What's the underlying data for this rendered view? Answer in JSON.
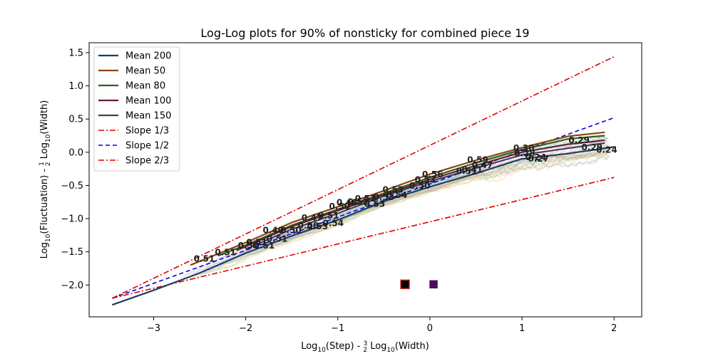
{
  "chart_data": {
    "type": "line",
    "title": "Log-Log plots for 90% of nonsticky for combined piece 19",
    "xlabel_parts": [
      "Log",
      "10",
      "(Step) - ",
      "3",
      "2",
      " Log",
      "10",
      "(Width)"
    ],
    "ylabel_parts": [
      "Log",
      "10",
      "(Fluctuation) - ",
      "1",
      "2",
      " Log",
      "10",
      "(Width)"
    ],
    "xlim": [
      -3.7,
      2.3
    ],
    "ylim": [
      -2.48,
      1.65
    ],
    "xticks": [
      -3,
      -2,
      -1,
      0,
      1,
      2
    ],
    "yticks": [
      -2.0,
      -1.5,
      -1.0,
      -0.5,
      0.0,
      0.5,
      1.0,
      1.5
    ],
    "xtick_labels": [
      "−3",
      "−2",
      "−1",
      "0",
      "1",
      "2"
    ],
    "ytick_labels": [
      "−2.0",
      "−1.5",
      "−1.0",
      "−0.5",
      "0.0",
      "0.5",
      "1.0",
      "1.5"
    ],
    "legend_position": "upper-left",
    "series": [
      {
        "name": "Mean 200",
        "color": "#1b3f5e",
        "x": [
          -3.45,
          -3.0,
          -2.5,
          -2.0,
          -1.5,
          -1.0,
          -0.5,
          0.0,
          0.5,
          1.0,
          1.5,
          2.0
        ],
        "y": [
          -2.3,
          -2.08,
          -1.82,
          -1.52,
          -1.26,
          -1.02,
          -0.74,
          -0.52,
          -0.32,
          -0.1,
          -0.02,
          0.08
        ]
      },
      {
        "name": "Mean 50",
        "color": "#8b4513",
        "x": [
          -2.6,
          -2.0,
          -1.5,
          -1.0,
          -0.5,
          0.0,
          0.5,
          1.0,
          1.5,
          1.9
        ],
        "y": [
          -1.7,
          -1.36,
          -1.06,
          -0.82,
          -0.58,
          -0.33,
          -0.12,
          0.07,
          0.24,
          0.3
        ]
      },
      {
        "name": "Mean 80",
        "color": "#2e5e1e",
        "x": [
          -2.3,
          -2.0,
          -1.5,
          -1.0,
          -0.5,
          0.0,
          0.5,
          1.0,
          1.5,
          1.9
        ],
        "y": [
          -1.56,
          -1.4,
          -1.1,
          -0.86,
          -0.62,
          -0.38,
          -0.16,
          0.04,
          0.2,
          0.25
        ]
      },
      {
        "name": "Mean 100",
        "color": "#6b1f2a",
        "x": [
          -2.1,
          -1.5,
          -1.0,
          -0.5,
          0.0,
          0.5,
          1.0,
          1.5,
          1.9
        ],
        "y": [
          -1.48,
          -1.12,
          -0.88,
          -0.64,
          -0.41,
          -0.2,
          0.0,
          0.12,
          0.18
        ]
      },
      {
        "name": "Mean 150",
        "color": "#4a3a5c",
        "x": [
          -2.0,
          -1.5,
          -1.0,
          -0.5,
          0.0,
          0.5,
          1.0,
          1.5,
          1.9
        ],
        "y": [
          -1.46,
          -1.16,
          -0.92,
          -0.66,
          -0.44,
          -0.24,
          -0.04,
          0.06,
          0.14
        ]
      }
    ],
    "reference_lines": [
      {
        "name": "Slope 1/3",
        "color": "#e00000",
        "dash": "8,3,2,3",
        "x": [
          -3.45,
          2.0
        ],
        "y": [
          -2.2,
          -0.38
        ]
      },
      {
        "name": "Slope 1/2",
        "color": "#0000dd",
        "dash": "6,4",
        "x": [
          -3.45,
          2.0
        ],
        "y": [
          -2.2,
          0.52
        ]
      },
      {
        "name": "Slope 2/3",
        "color": "#e00000",
        "dash": "8,3,2,3",
        "x": [
          -3.45,
          2.0
        ],
        "y": [
          -2.2,
          1.44
        ]
      }
    ],
    "slope_labels": [
      {
        "text": "0.51",
        "x": -2.45,
        "y": -1.65
      },
      {
        "text": "0.51",
        "x": -2.22,
        "y": -1.55
      },
      {
        "text": "0.50",
        "x": -1.97,
        "y": -1.45
      },
      {
        "text": "0.51",
        "x": -1.8,
        "y": -1.45
      },
      {
        "text": "0.51",
        "x": -1.88,
        "y": -1.4
      },
      {
        "text": "0.51",
        "x": -1.66,
        "y": -1.35
      },
      {
        "text": "0.40",
        "x": -1.7,
        "y": -1.22
      },
      {
        "text": "0.50",
        "x": -1.51,
        "y": -1.22
      },
      {
        "text": "0.50",
        "x": -1.32,
        "y": -1.15
      },
      {
        "text": "0.53",
        "x": -1.22,
        "y": -1.16
      },
      {
        "text": "0.47",
        "x": -1.28,
        "y": -1.03
      },
      {
        "text": "0.51",
        "x": -1.1,
        "y": -1.0
      },
      {
        "text": "0.54",
        "x": -1.05,
        "y": -1.11
      },
      {
        "text": "0.50",
        "x": -0.98,
        "y": -0.86
      },
      {
        "text": "0.48",
        "x": -0.9,
        "y": -0.8
      },
      {
        "text": "0.52",
        "x": -0.78,
        "y": -0.79
      },
      {
        "text": "0.53",
        "x": -0.6,
        "y": -0.82
      },
      {
        "text": "0.51",
        "x": -0.7,
        "y": -0.74
      },
      {
        "text": "0.53",
        "x": -0.5,
        "y": -0.72
      },
      {
        "text": "0.54",
        "x": -0.36,
        "y": -0.69
      },
      {
        "text": "0.53",
        "x": -0.4,
        "y": -0.61
      },
      {
        "text": "0.50",
        "x": -0.11,
        "y": -0.55
      },
      {
        "text": "0.53",
        "x": -0.05,
        "y": -0.46
      },
      {
        "text": "0.56",
        "x": 0.03,
        "y": -0.38
      },
      {
        "text": "0.51",
        "x": 0.4,
        "y": -0.33
      },
      {
        "text": "0.41",
        "x": 0.46,
        "y": -0.31
      },
      {
        "text": "0.59",
        "x": 0.52,
        "y": -0.16
      },
      {
        "text": "0.47",
        "x": 0.57,
        "y": -0.24
      },
      {
        "text": "0.30",
        "x": 1.02,
        "y": 0.02
      },
      {
        "text": "0.28",
        "x": 1.03,
        "y": -0.06
      },
      {
        "text": "0.27",
        "x": 1.18,
        "y": -0.14
      },
      {
        "text": "0.24",
        "x": 1.15,
        "y": -0.12
      },
      {
        "text": "0.29",
        "x": 1.62,
        "y": 0.14
      },
      {
        "text": "0.29",
        "x": 1.76,
        "y": 0.03
      },
      {
        "text": "0.24",
        "x": 1.92,
        "y": -0.01
      }
    ],
    "markers": [
      {
        "x": -0.27,
        "y": -1.99,
        "fill": "#000000",
        "stroke": "#cc2a1a",
        "size": 12
      },
      {
        "x": 0.04,
        "y": -1.99,
        "fill": "#4b0e5c",
        "stroke": "#4b0e5c",
        "size": 10
      }
    ]
  }
}
